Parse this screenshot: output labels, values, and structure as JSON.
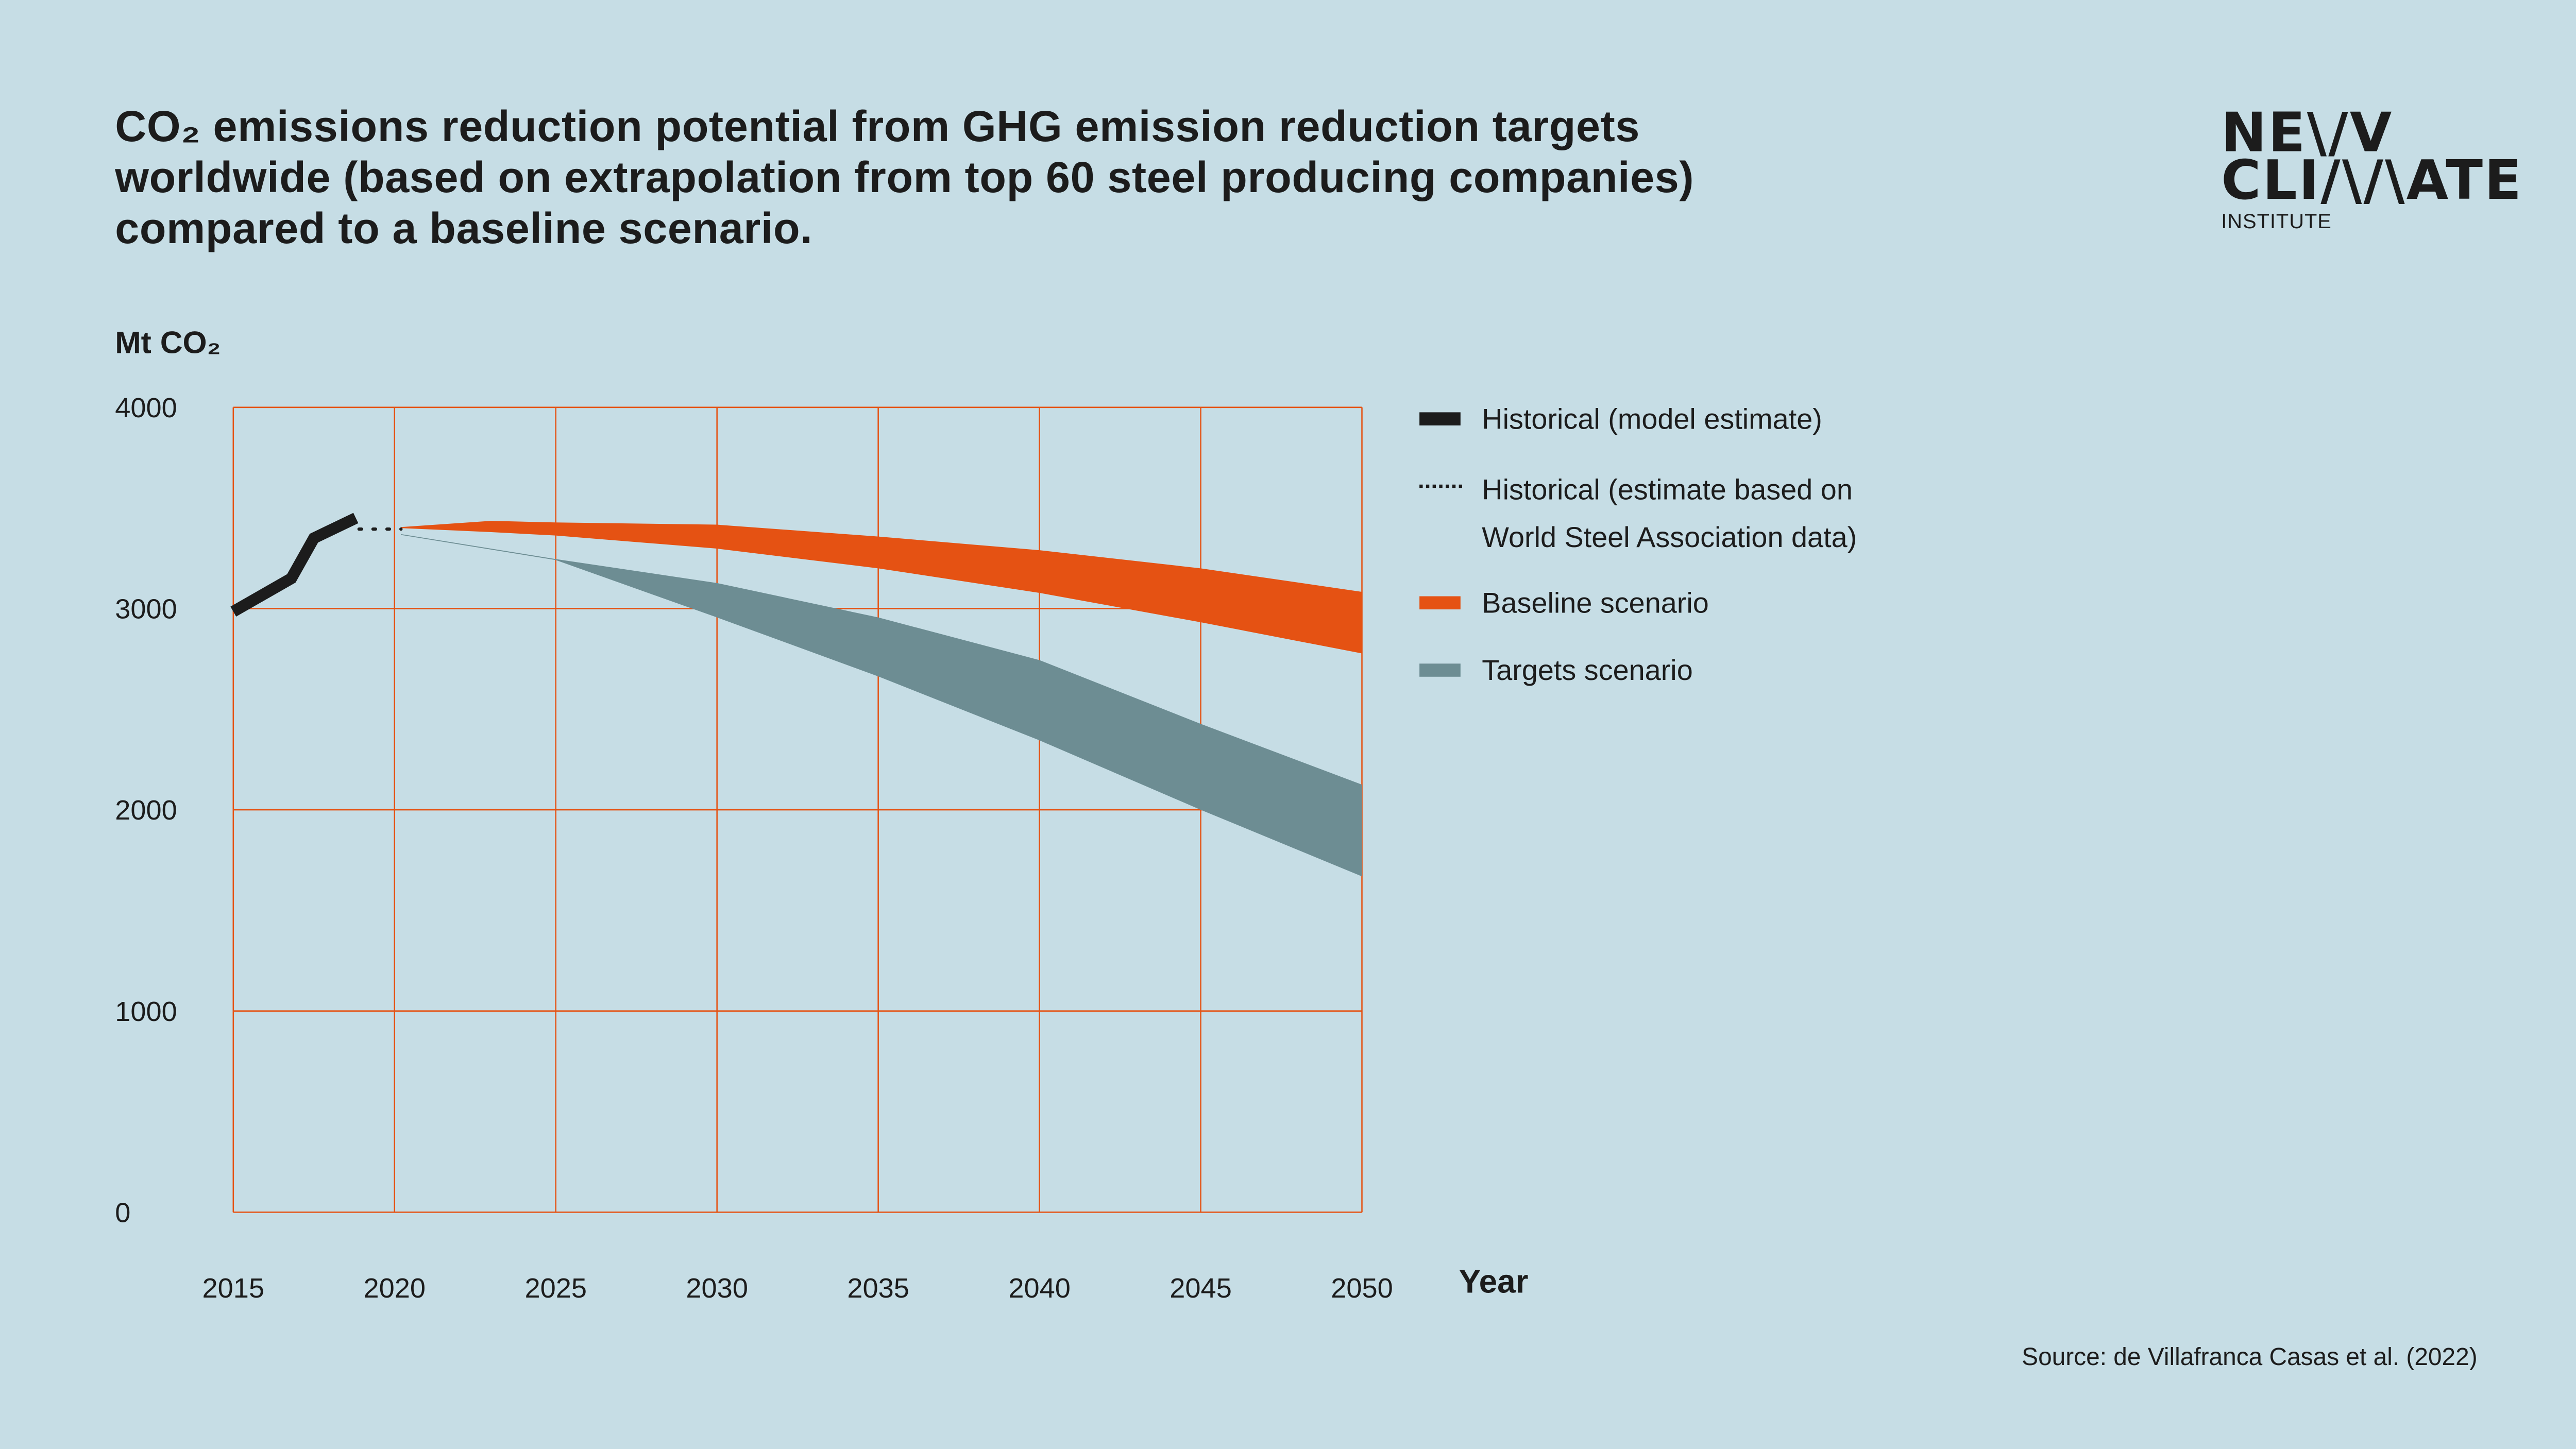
{
  "title": {
    "lines": [
      "CO₂ emissions reduction potential from GHG emission reduction targets",
      "worldwide (based on extrapolation from top 60 steel producing companies)",
      "compared to a baseline scenario."
    ]
  },
  "logo": {
    "line1": "NE\\/V",
    "line2": "CLI/\\/\\ATE",
    "line3": "INSTITUTE"
  },
  "source": "Source: de Villafranca Casas et al. (2022)",
  "colors": {
    "background": "#c6dde5",
    "grid": "#e55213",
    "historical": "#1c1c1c",
    "baseline": "#e55213",
    "targets": "#6d8d93"
  },
  "chart_data": {
    "type": "area",
    "ylabel": "Mt CO₂",
    "xlabel": "Year",
    "xlim": [
      2015,
      2050
    ],
    "ylim": [
      0,
      4000
    ],
    "xticks": [
      "2015",
      "2020",
      "2025",
      "2030",
      "2035",
      "2040",
      "2045",
      "2050"
    ],
    "yticks": [
      "0",
      "1000",
      "2000",
      "3000",
      "4000"
    ],
    "grid": true,
    "legend_placement": "right",
    "legend": [
      {
        "label": "Historical (model estimate)",
        "style": "thick-line",
        "color": "#1c1c1c"
      },
      {
        "label": "Historical (estimate based on",
        "label2": "World Steel Association data)",
        "style": "dotted-line",
        "color": "#1c1c1c"
      },
      {
        "label": "Baseline scenario",
        "style": "band",
        "color": "#e55213"
      },
      {
        "label": "Targets scenario",
        "style": "band",
        "color": "#6d8d93"
      }
    ],
    "historical_model": {
      "x": [
        2015,
        2016.8,
        2017.5,
        2018.8
      ],
      "y": [
        2985,
        3150,
        3350,
        3450
      ]
    },
    "historical_wsa": {
      "x": [
        2018.9,
        2020.2
      ],
      "y": [
        3395,
        3395
      ]
    },
    "baseline": {
      "x": [
        2020.2,
        2023,
        2025,
        2030,
        2035,
        2040,
        2045,
        2050
      ],
      "upper": [
        3405,
        3436,
        3428,
        3417,
        3358,
        3290,
        3200,
        3083
      ],
      "lower": [
        3400,
        3380,
        3363,
        3298,
        3200,
        3078,
        2932,
        2777
      ]
    },
    "targets": {
      "x": [
        2020.2,
        2025,
        2030,
        2035,
        2040,
        2045,
        2050
      ],
      "upper": [
        3370,
        3246,
        3127,
        2956,
        2744,
        2427,
        2125
      ],
      "lower": [
        3366,
        3241,
        2956,
        2663,
        2345,
        2000,
        1669
      ]
    }
  }
}
